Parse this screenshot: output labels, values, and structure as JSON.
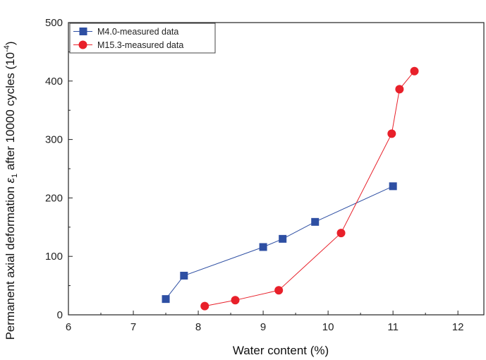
{
  "chart_data": {
    "type": "scatter",
    "xlabel": "Water content (%)",
    "ylabel_prefix": "Permanent axial deformation ",
    "ylabel_symbol": "ε",
    "ylabel_subscript": "1",
    "ylabel_middle": " after 10000 cycles (10",
    "ylabel_exponent": "-4",
    "ylabel_suffix": ")",
    "xlim": [
      6,
      12.4
    ],
    "ylim": [
      0,
      500
    ],
    "xticks": [
      "6",
      "7",
      "8",
      "9",
      "10",
      "11",
      "12"
    ],
    "yticks": [
      "0",
      "100",
      "200",
      "300",
      "400",
      "500"
    ],
    "legend_position": "top-left",
    "grid": false,
    "series": [
      {
        "name": "M4.0-measured data",
        "marker": "square",
        "color": "#2e4fa3",
        "x": [
          7.5,
          7.78,
          9.0,
          9.3,
          9.8,
          11.0
        ],
        "y": [
          27,
          67,
          116,
          130,
          159,
          220
        ]
      },
      {
        "name": "M15.3-measured data",
        "marker": "circle",
        "color": "#e8202a",
        "x": [
          8.1,
          8.57,
          9.24,
          10.2,
          10.98,
          11.1,
          11.33
        ],
        "y": [
          15,
          25,
          42,
          140,
          310,
          386,
          417
        ]
      }
    ]
  }
}
